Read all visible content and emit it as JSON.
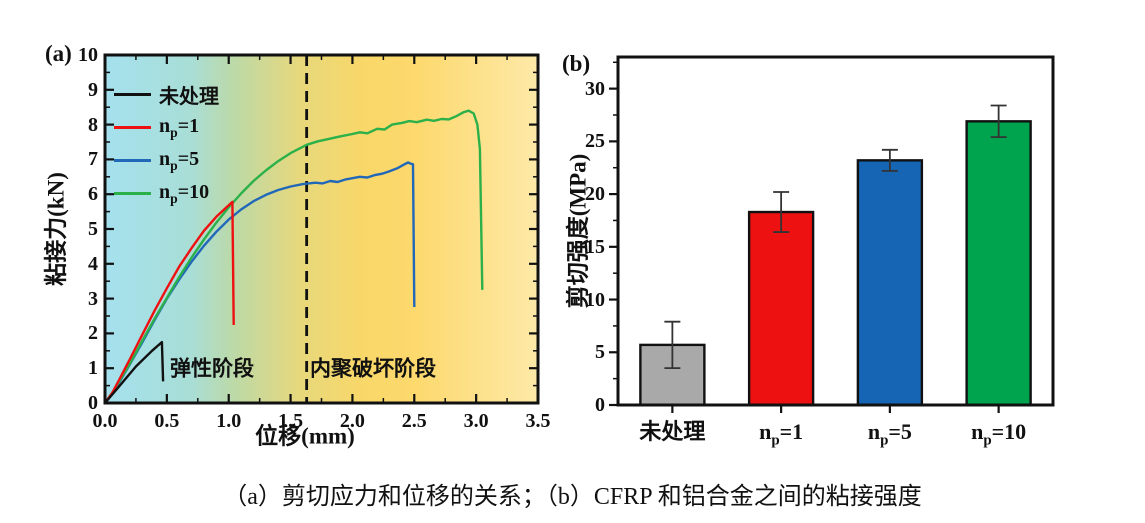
{
  "figure": {
    "caption": "（a）剪切应力和位移的关系；（b）CFRP 和铝合金之间的粘接强度"
  },
  "chart_data": [
    {
      "id": "a",
      "type": "line",
      "panel_label": "(a)",
      "xlabel": "位移(mm)",
      "ylabel": "粘接力(kN)",
      "xlim": [
        0,
        3.5
      ],
      "ylim": [
        0,
        10
      ],
      "x_tick_labels": [
        "0.0",
        "0.5",
        "1.0",
        "1.5",
        "2.0",
        "2.5",
        "3.0",
        "3.5"
      ],
      "x_major_ticks": [
        0,
        0.5,
        1,
        1.5,
        2,
        2.5,
        3,
        3.5
      ],
      "x_minor_step": 0.25,
      "y_tick_labels": [
        "0",
        "1",
        "2",
        "3",
        "4",
        "5",
        "6",
        "7",
        "8",
        "9",
        "10"
      ],
      "y_major_ticks": [
        0,
        1,
        2,
        3,
        4,
        5,
        6,
        7,
        8,
        9,
        10
      ],
      "y_minor_step": 0.5,
      "dashed_line_x": 1.63,
      "legend_position": "top-left",
      "annotations": [
        {
          "text": "弹性阶段",
          "x": 0.86,
          "y": 0.95
        },
        {
          "text": "内聚破坏阶段",
          "x": 2.17,
          "y": 0.95
        }
      ],
      "background_gradient": [
        {
          "offset": 0,
          "color": "#a5e1ee"
        },
        {
          "offset": 0.2,
          "color": "#a9ded6"
        },
        {
          "offset": 0.3,
          "color": "#bdd9a6"
        },
        {
          "offset": 0.45,
          "color": "#e7d87c"
        },
        {
          "offset": 0.6,
          "color": "#f9d768"
        },
        {
          "offset": 0.72,
          "color": "#fdd96e"
        },
        {
          "offset": 1,
          "color": "#fde9a8"
        }
      ],
      "series": [
        {
          "name": "未处理",
          "color": "#111111",
          "points": [
            [
              0,
              0
            ],
            [
              0.12,
              0.5
            ],
            [
              0.25,
              1.05
            ],
            [
              0.38,
              1.5
            ],
            [
              0.46,
              1.75
            ],
            [
              0.47,
              0.62
            ]
          ]
        },
        {
          "name": "n_p=1",
          "color": "#ee1111",
          "points": [
            [
              0,
              0
            ],
            [
              0.06,
              0.3
            ],
            [
              0.12,
              0.7
            ],
            [
              0.2,
              1.25
            ],
            [
              0.3,
              1.95
            ],
            [
              0.4,
              2.65
            ],
            [
              0.5,
              3.3
            ],
            [
              0.6,
              3.92
            ],
            [
              0.7,
              4.45
            ],
            [
              0.8,
              4.95
            ],
            [
              0.9,
              5.35
            ],
            [
              1.0,
              5.68
            ],
            [
              1.03,
              5.78
            ],
            [
              1.04,
              2.24
            ]
          ]
        },
        {
          "name": "n_p=5",
          "color": "#2268b8",
          "points": [
            [
              0,
              0
            ],
            [
              0.06,
              0.28
            ],
            [
              0.12,
              0.62
            ],
            [
              0.2,
              1.1
            ],
            [
              0.3,
              1.73
            ],
            [
              0.4,
              2.38
            ],
            [
              0.5,
              3.0
            ],
            [
              0.6,
              3.55
            ],
            [
              0.7,
              4.06
            ],
            [
              0.8,
              4.52
            ],
            [
              0.9,
              4.92
            ],
            [
              1.0,
              5.27
            ],
            [
              1.1,
              5.56
            ],
            [
              1.2,
              5.8
            ],
            [
              1.3,
              5.98
            ],
            [
              1.4,
              6.12
            ],
            [
              1.5,
              6.22
            ],
            [
              1.6,
              6.29
            ],
            [
              1.7,
              6.33
            ],
            [
              1.76,
              6.31
            ],
            [
              1.82,
              6.38
            ],
            [
              1.88,
              6.35
            ],
            [
              1.94,
              6.42
            ],
            [
              2.0,
              6.46
            ],
            [
              2.06,
              6.5
            ],
            [
              2.12,
              6.48
            ],
            [
              2.18,
              6.55
            ],
            [
              2.24,
              6.59
            ],
            [
              2.3,
              6.66
            ],
            [
              2.36,
              6.74
            ],
            [
              2.42,
              6.86
            ],
            [
              2.45,
              6.91
            ],
            [
              2.47,
              6.88
            ],
            [
              2.49,
              6.86
            ],
            [
              2.5,
              2.76
            ]
          ]
        },
        {
          "name": "n_p=10",
          "color": "#2bb04a",
          "points": [
            [
              0,
              0
            ],
            [
              0.06,
              0.3
            ],
            [
              0.12,
              0.65
            ],
            [
              0.2,
              1.12
            ],
            [
              0.3,
              1.78
            ],
            [
              0.4,
              2.42
            ],
            [
              0.5,
              3.02
            ],
            [
              0.6,
              3.62
            ],
            [
              0.7,
              4.18
            ],
            [
              0.8,
              4.7
            ],
            [
              0.9,
              5.18
            ],
            [
              1.0,
              5.62
            ],
            [
              1.1,
              6.02
            ],
            [
              1.2,
              6.38
            ],
            [
              1.3,
              6.68
            ],
            [
              1.4,
              6.95
            ],
            [
              1.5,
              7.18
            ],
            [
              1.63,
              7.42
            ],
            [
              1.72,
              7.52
            ],
            [
              1.8,
              7.58
            ],
            [
              1.9,
              7.66
            ],
            [
              2.0,
              7.73
            ],
            [
              2.06,
              7.78
            ],
            [
              2.12,
              7.75
            ],
            [
              2.2,
              7.88
            ],
            [
              2.26,
              7.86
            ],
            [
              2.32,
              8.0
            ],
            [
              2.4,
              8.05
            ],
            [
              2.46,
              8.1
            ],
            [
              2.52,
              8.07
            ],
            [
              2.6,
              8.14
            ],
            [
              2.66,
              8.11
            ],
            [
              2.72,
              8.16
            ],
            [
              2.78,
              8.15
            ],
            [
              2.84,
              8.24
            ],
            [
              2.9,
              8.36
            ],
            [
              2.94,
              8.4
            ],
            [
              2.98,
              8.32
            ],
            [
              3.01,
              8.0
            ],
            [
              3.03,
              7.3
            ],
            [
              3.05,
              3.25
            ]
          ]
        }
      ]
    },
    {
      "id": "b",
      "type": "bar",
      "panel_label": "(b)",
      "xlabel": "",
      "ylabel": "剪切强度(MPa)",
      "ylim": [
        0,
        33
      ],
      "y_tick_labels": [
        "0",
        "5",
        "10",
        "15",
        "20",
        "25",
        "30"
      ],
      "y_major_ticks": [
        0,
        5,
        10,
        15,
        20,
        25,
        30
      ],
      "y_minor_step": 2.5,
      "categories": [
        "未处理",
        "n_p=1",
        "n_p=5",
        "n_p=10"
      ],
      "values": [
        5.7,
        18.3,
        23.2,
        26.9
      ],
      "errors": [
        2.2,
        1.9,
        1.0,
        1.5
      ],
      "bar_colors": [
        "#a9a9a9",
        "#ee1111",
        "#1565b4",
        "#00a44f"
      ],
      "error_bar_color": "#333333"
    }
  ]
}
